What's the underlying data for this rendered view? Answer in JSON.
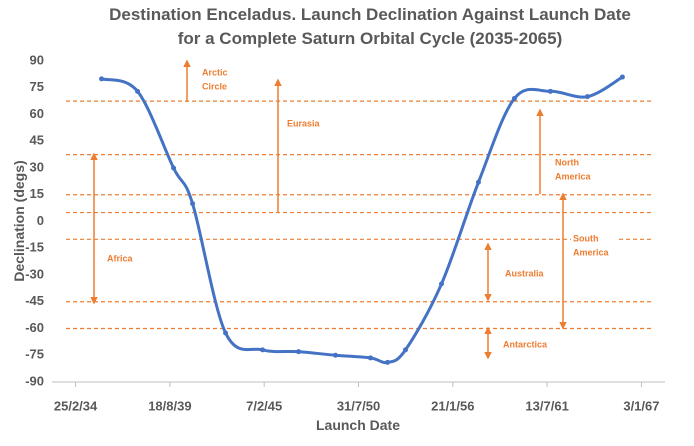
{
  "chart_data": {
    "type": "line",
    "title": [
      "Destination Enceladus. Launch Declination Against Launch Date",
      "for a Complete Saturn Orbital Cycle (2035-2065)"
    ],
    "x_label": "Launch Date",
    "y_label": "Declination (degs)",
    "x": [
      47551,
      48314,
      49078,
      49481,
      50181,
      50965,
      51729,
      52512,
      53255,
      53615,
      53996,
      54760,
      55544,
      56307,
      57070,
      57855,
      58597
    ],
    "series": [
      {
        "name": "Declination",
        "color": "#4472c4",
        "values": [
          80,
          73,
          30,
          10,
          -62.5,
          -72,
          -73,
          -75,
          -76.5,
          -79,
          -72,
          -35,
          22,
          69,
          73,
          70,
          81
        ]
      }
    ],
    "xlim": [
      46500,
      59500
    ],
    "xticks": [
      {
        "value": 47000,
        "label": "25/2/34"
      },
      {
        "value": 49000,
        "label": "18/8/39"
      },
      {
        "value": 51000,
        "label": "7/2/45"
      },
      {
        "value": 53000,
        "label": "31/7/50"
      },
      {
        "value": 55000,
        "label": "21/1/56"
      },
      {
        "value": 57000,
        "label": "13/7/61"
      },
      {
        "value": 59000,
        "label": "3/1/67"
      }
    ],
    "ylim": [
      -90,
      90
    ],
    "yticks": [
      -90,
      -75,
      -60,
      -45,
      -30,
      -15,
      0,
      15,
      30,
      45,
      60,
      75,
      90
    ],
    "reference_lines": [
      67.5,
      37.5,
      15,
      5,
      -10,
      -45,
      -60
    ],
    "reference_color": "#ed7d31",
    "annotations": [
      {
        "lines": [
          "Arctic",
          "Circle"
        ]
      },
      {
        "lines": [
          "Eurasia"
        ]
      },
      {
        "lines": [
          "Africa"
        ]
      },
      {
        "lines": [
          "North",
          "America"
        ]
      },
      {
        "lines": [
          "South",
          "America"
        ]
      },
      {
        "lines": [
          "Australia"
        ]
      },
      {
        "lines": [
          "Antarctica"
        ]
      }
    ]
  }
}
